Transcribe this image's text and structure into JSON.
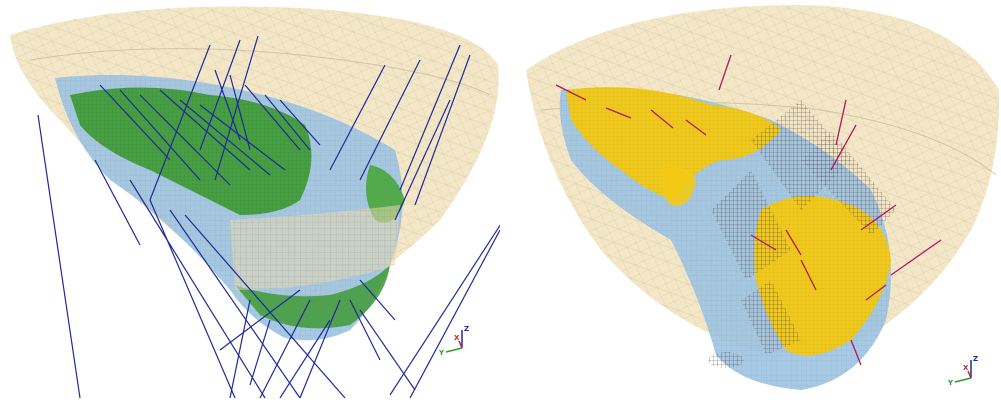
{
  "scene": {
    "background": "#ffffff",
    "colors": {
      "pit_shell": "#f1e3bd",
      "pit_wire": "#d8c9a3",
      "orebody_blue": "#9fc3e0",
      "orebody_blue_dark": "#6f9fcc",
      "green_ore": "#3f9a35",
      "green_ore_light": "#6dbf5a",
      "yellow_ore": "#f2c914",
      "drillhole_blue": "#1f2a9a",
      "drillhole_magenta": "#b0195e",
      "grid_wire": "#4a3a3a"
    }
  },
  "left_view": {
    "triad": {
      "x_label": "X",
      "y_label": "Y",
      "z_label": "Z"
    }
  },
  "right_view": {
    "triad": {
      "x_label": "X",
      "y_label": "Y",
      "z_label": "Z"
    }
  }
}
